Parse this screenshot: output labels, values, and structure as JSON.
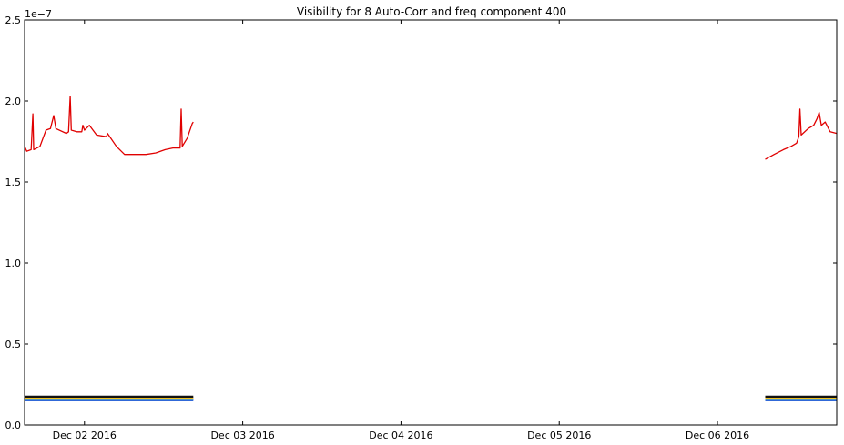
{
  "chart_data": {
    "type": "line",
    "title": "Visibility for 8 Auto-Corr and freq component 400",
    "xlabel": "",
    "ylabel": "",
    "y_scale_label": "1e−7",
    "y_multiplier": 1e-07,
    "ylim": [
      0.0,
      2.5
    ],
    "xlim": [
      "2016-12-01 14:55",
      "2016-12-06 18:05"
    ],
    "x_ticks": [
      "2016-12-02 00:00",
      "2016-12-03 00:00",
      "2016-12-04 00:00",
      "2016-12-05 00:00",
      "2016-12-06 00:00"
    ],
    "x_tick_labels": [
      "Dec 02 2016",
      "Dec 03 2016",
      "Dec 04 2016",
      "Dec 05 2016",
      "Dec 06 2016"
    ],
    "y_ticks": [
      0.0,
      0.5,
      1.0,
      1.5,
      2.0,
      2.5
    ],
    "y_tick_labels": [
      "0.0",
      "0.5",
      "1.0",
      "1.5",
      "2.0",
      "2.5"
    ],
    "grid": false,
    "legend": "none",
    "series": [
      {
        "color": "#e00000",
        "segments": [
          [
            [
              "2016-12-01 14:55",
              1.72
            ],
            [
              "2016-12-01 15:15",
              1.69
            ],
            [
              "2016-12-01 15:55",
              1.7
            ],
            [
              "2016-12-01 16:10",
              1.92
            ],
            [
              "2016-12-01 16:18",
              1.7
            ],
            [
              "2016-12-01 17:15",
              1.72
            ],
            [
              "2016-12-01 18:10",
              1.82
            ],
            [
              "2016-12-01 18:50",
              1.83
            ],
            [
              "2016-12-01 19:20",
              1.91
            ],
            [
              "2016-12-01 19:40",
              1.83
            ],
            [
              "2016-12-01 21:15",
              1.8
            ],
            [
              "2016-12-01 21:35",
              1.81
            ],
            [
              "2016-12-01 21:50",
              2.03
            ],
            [
              "2016-12-01 22:00",
              1.82
            ],
            [
              "2016-12-01 22:50",
              1.81
            ],
            [
              "2016-12-01 23:35",
              1.81
            ],
            [
              "2016-12-01 23:45",
              1.85
            ],
            [
              "2016-12-02 00:00",
              1.82
            ],
            [
              "2016-12-02 00:45",
              1.85
            ],
            [
              "2016-12-02 01:50",
              1.79
            ],
            [
              "2016-12-02 03:20",
              1.78
            ],
            [
              "2016-12-02 03:30",
              1.8
            ],
            [
              "2016-12-02 04:50",
              1.72
            ],
            [
              "2016-12-02 06:05",
              1.67
            ],
            [
              "2016-12-02 09:20",
              1.67
            ],
            [
              "2016-12-02 10:50",
              1.68
            ],
            [
              "2016-12-02 12:15",
              1.7
            ],
            [
              "2016-12-02 13:25",
              1.71
            ],
            [
              "2016-12-02 14:30",
              1.71
            ],
            [
              "2016-12-02 14:40",
              1.95
            ],
            [
              "2016-12-02 14:50",
              1.72
            ],
            [
              "2016-12-02 15:35",
              1.77
            ],
            [
              "2016-12-02 16:20",
              1.86
            ],
            [
              "2016-12-02 16:30",
              1.87
            ]
          ],
          [
            [
              "2016-12-06 07:15",
              1.64
            ],
            [
              "2016-12-06 08:35",
              1.67
            ],
            [
              "2016-12-06 10:00",
              1.7
            ],
            [
              "2016-12-06 11:10",
              1.72
            ],
            [
              "2016-12-06 12:00",
              1.74
            ],
            [
              "2016-12-06 12:20",
              1.78
            ],
            [
              "2016-12-06 12:30",
              1.95
            ],
            [
              "2016-12-06 12:42",
              1.79
            ],
            [
              "2016-12-06 13:45",
              1.83
            ],
            [
              "2016-12-06 14:35",
              1.85
            ],
            [
              "2016-12-06 15:05",
              1.89
            ],
            [
              "2016-12-06 15:25",
              1.93
            ],
            [
              "2016-12-06 15:45",
              1.85
            ],
            [
              "2016-12-06 16:20",
              1.87
            ],
            [
              "2016-12-06 17:05",
              1.81
            ],
            [
              "2016-12-06 18:05",
              1.8
            ]
          ]
        ]
      },
      {
        "color": "#111111",
        "segments": [
          [
            [
              "2016-12-01 14:55",
              0.175
            ],
            [
              "2016-12-02 16:30",
              0.175
            ]
          ],
          [
            [
              "2016-12-06 07:15",
              0.175
            ],
            [
              "2016-12-06 18:05",
              0.175
            ]
          ]
        ]
      },
      {
        "color": "#f0c020",
        "segments": [
          [
            [
              "2016-12-01 14:55",
              0.168
            ],
            [
              "2016-12-02 16:30",
              0.168
            ]
          ],
          [
            [
              "2016-12-06 07:15",
              0.168
            ],
            [
              "2016-12-06 18:05",
              0.168
            ]
          ]
        ]
      },
      {
        "color": "#b040c0",
        "segments": [
          [
            [
              "2016-12-01 14:55",
              0.162
            ],
            [
              "2016-12-02 16:30",
              0.162
            ]
          ],
          [
            [
              "2016-12-06 07:15",
              0.162
            ],
            [
              "2016-12-06 18:05",
              0.162
            ]
          ]
        ]
      },
      {
        "color": "#30b0c0",
        "segments": [
          [
            [
              "2016-12-01 14:55",
              0.157
            ],
            [
              "2016-12-02 16:30",
              0.157
            ]
          ],
          [
            [
              "2016-12-06 07:15",
              0.157
            ],
            [
              "2016-12-06 18:05",
              0.157
            ]
          ]
        ]
      },
      {
        "color": "#3050e0",
        "segments": [
          [
            [
              "2016-12-01 14:55",
              0.152
            ],
            [
              "2016-12-02 16:30",
              0.152
            ]
          ],
          [
            [
              "2016-12-06 07:15",
              0.152
            ],
            [
              "2016-12-06 18:05",
              0.152
            ]
          ]
        ]
      }
    ]
  }
}
